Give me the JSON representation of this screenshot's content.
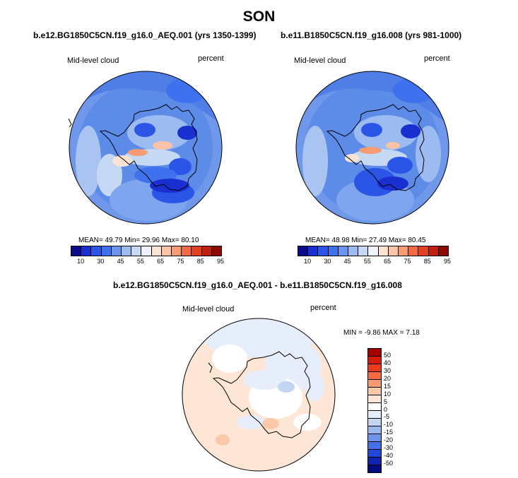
{
  "title": "SON",
  "panels": [
    {
      "case": "b.e12.BG1850C5CN.f19_g16.0_AEQ.001 (yrs 1350-1399)",
      "variable": "Mid-level cloud",
      "units": "percent",
      "stats": "MEAN=  49.79  Min=  29.96  Max=  80.10"
    },
    {
      "case": "b.e11.B1850C5CN.f19_g16.008 (yrs 981-1000)",
      "variable": "Mid-level cloud",
      "units": "percent",
      "stats": "MEAN=  48.98  Min=  27.49  Max=  80.45"
    }
  ],
  "difference": {
    "title": "b.e12.BG1850C5CN.f19_g16.0_AEQ.001 - b.e11.B1850C5CN.f19_g16.008",
    "variable": "Mid-level cloud",
    "units": "percent",
    "stats": "MIN =  -9.86  MAX =   7.18"
  },
  "colorbar": {
    "colors": [
      "#0a0a8c",
      "#1a2fcf",
      "#2a55e6",
      "#3f71ee",
      "#6a95ef",
      "#9cbbf0",
      "#c5d9f5",
      "#eef3fb",
      "#fde4d2",
      "#fbc4a6",
      "#f79b73",
      "#f26a45",
      "#e33f21",
      "#c11f10",
      "#8e0b05"
    ],
    "ticks": [
      "10",
      "30",
      "45",
      "55",
      "65",
      "75",
      "85",
      "95"
    ]
  },
  "diff_colorbar": {
    "colors": [
      "#a50000",
      "#d81c0c",
      "#f13a1a",
      "#f46b3e",
      "#f89b73",
      "#fbc9a9",
      "#fde6d6",
      "#ffffff",
      "#e6eefb",
      "#c2d6f4",
      "#98b8ee",
      "#6e94ea",
      "#4570e6",
      "#2347d8",
      "#0f22b0",
      "#050a80"
    ],
    "ticks": [
      "50",
      "40",
      "30",
      "20",
      "15",
      "10",
      "5",
      "0",
      "-5",
      "-10",
      "-15",
      "-20",
      "-30",
      "-40",
      "-50"
    ]
  }
}
